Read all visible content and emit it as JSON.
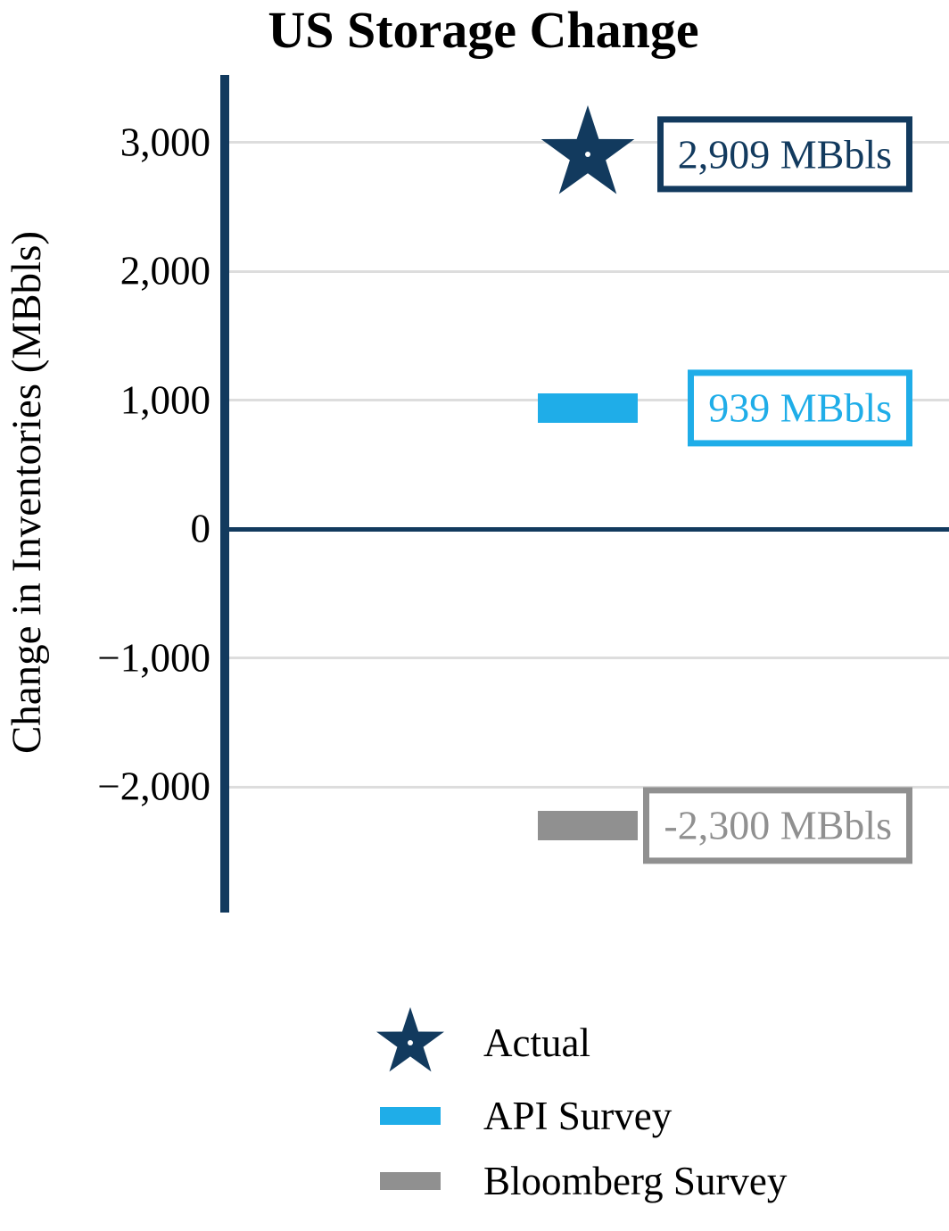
{
  "title": "US Storage Change",
  "y_axis": {
    "label": "Change in Inventories (MBbls)",
    "ticks": [
      {
        "value": 3000,
        "label": "3,000"
      },
      {
        "value": 2000,
        "label": "2,000"
      },
      {
        "value": 1000,
        "label": "1,000"
      },
      {
        "value": 0,
        "label": "0"
      },
      {
        "value": -1000,
        "label": "−1,000"
      },
      {
        "value": -2000,
        "label": "−2,000"
      }
    ]
  },
  "chart_data": {
    "type": "scatter",
    "title": "US Storage Change",
    "xlabel": "",
    "ylabel": "Change in Inventories (MBbls)",
    "ylim": [
      -2970,
      3520
    ],
    "grid": true,
    "legend_position": "bottom",
    "series": [
      {
        "name": "Actual",
        "marker": "star",
        "value": 2909,
        "label": "2,909 MBbls",
        "color": "#123a5e"
      },
      {
        "name": "API Survey",
        "marker": "bar",
        "value": 939,
        "label": "939 MBbls",
        "color": "#1fade8"
      },
      {
        "name": "Bloomberg Survey",
        "marker": "bar",
        "value": -2300,
        "label": "-2,300 MBbls",
        "color": "#909090"
      }
    ]
  },
  "colors": {
    "navy": "#123a5e",
    "cyan": "#1fade8",
    "gray": "#909090",
    "gridline": "#dddddd",
    "background": "#ffffff"
  }
}
